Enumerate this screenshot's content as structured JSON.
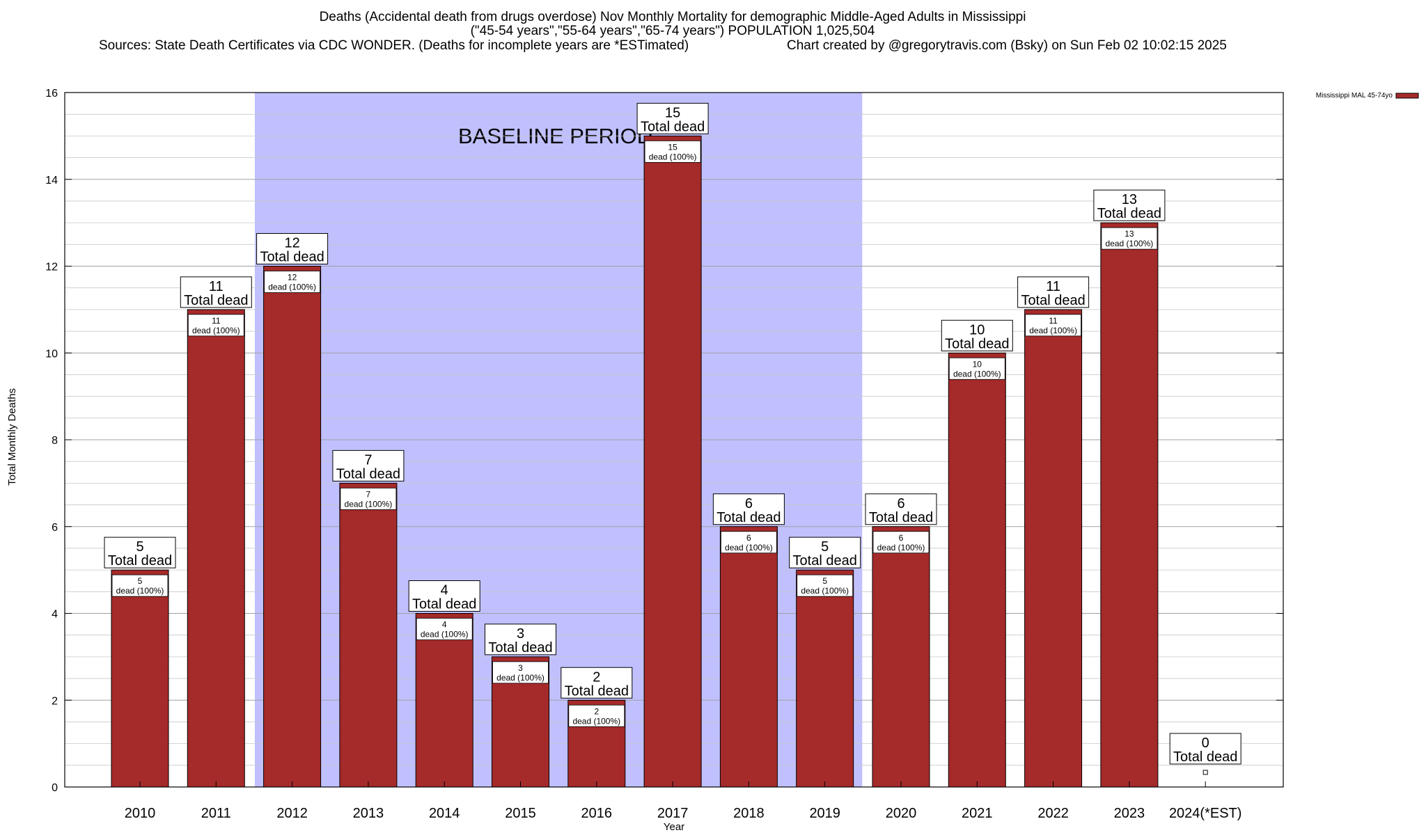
{
  "chart_data": {
    "type": "bar",
    "title": "Deaths (Accidental death from drugs overdose) Nov Monthly Mortality for demographic Middle-Aged Adults in Mississippi",
    "subtitle": "(\"45-54 years\",\"55-64 years\",\"65-74 years\") POPULATION 1,025,504",
    "sources": "Sources: State Death Certificates via CDC WONDER. (Deaths for incomplete years are *ESTimated)",
    "credit": "Chart created by @gregorytravis.com (Bsky) on Sun Feb 02 10:02:15 2025",
    "xlabel": "Year",
    "ylabel": "Total Monthly Deaths",
    "ylim": [
      0,
      16
    ],
    "yticks": [
      "0",
      "2",
      "4",
      "6",
      "8",
      "10",
      "12",
      "14",
      "16"
    ],
    "categories": [
      "2010",
      "2011",
      "2012",
      "2013",
      "2014",
      "2015",
      "2016",
      "2017",
      "2018",
      "2019",
      "2020",
      "2021",
      "2022",
      "2023",
      "2024(*EST)"
    ],
    "series": [
      {
        "name": "Mississippi MAL 45-74yo",
        "color": "#a52a2a",
        "values": [
          5,
          11,
          12,
          7,
          4,
          3,
          2,
          15,
          6,
          5,
          6,
          10,
          11,
          13,
          0
        ]
      }
    ],
    "total_label_suffix": "Total dead",
    "inner_label_suffix": "dead (100%)",
    "baseline": {
      "label": "BASELINE PERIOD",
      "start_index": 2,
      "end_index": 9,
      "color": "#c0c0ff"
    },
    "legend_position": "top-right",
    "grid": true
  }
}
